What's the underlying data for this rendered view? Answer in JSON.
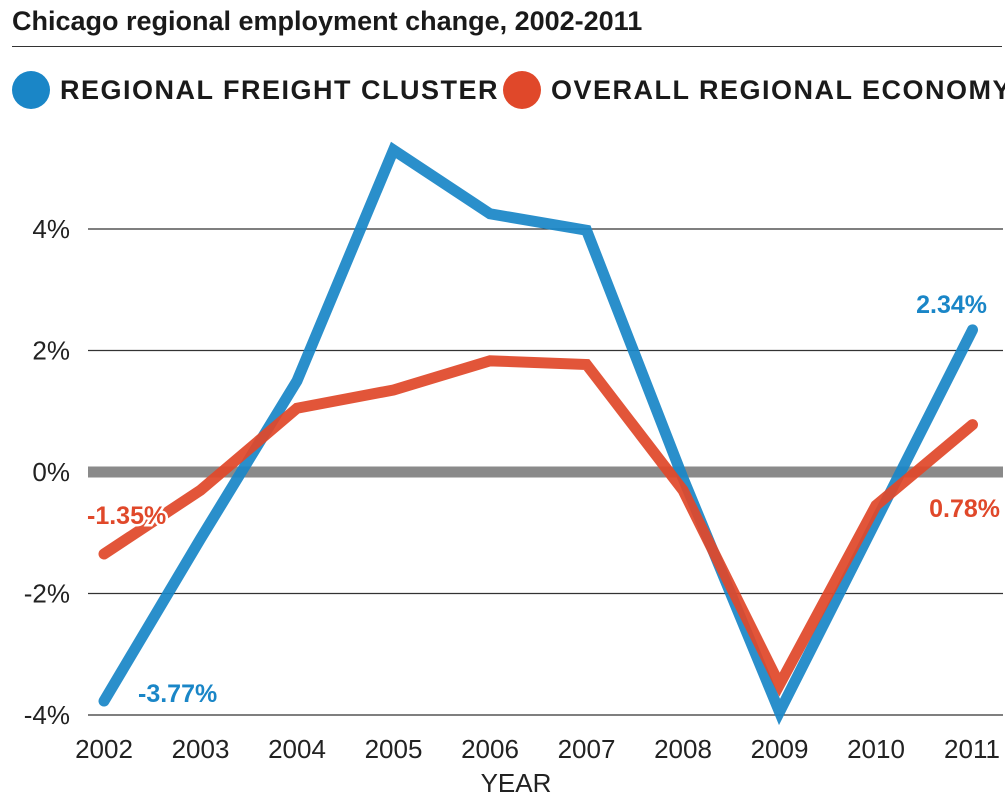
{
  "chart_data": {
    "type": "line",
    "title": "Chicago regional employment change, 2002-2011",
    "xlabel": "YEAR",
    "ylabel": "",
    "categories": [
      "2002",
      "2003",
      "2004",
      "2005",
      "2006",
      "2007",
      "2008",
      "2009",
      "2010",
      "2011"
    ],
    "series": [
      {
        "name": "REGIONAL FREIGHT CLUSTER",
        "color": "#1a86c7",
        "values": [
          -3.77,
          -1.1,
          1.5,
          5.3,
          4.25,
          3.98,
          -0.1,
          -3.95,
          -0.8,
          2.34
        ],
        "start_label": "-3.77%",
        "end_label": "2.34%"
      },
      {
        "name": "OVERALL REGIONAL ECONOMY",
        "color": "#e0482a",
        "values": [
          -1.35,
          -0.3,
          1.05,
          1.35,
          1.83,
          1.77,
          -0.3,
          -3.5,
          -0.55,
          0.78
        ],
        "start_label": "-1.35%",
        "end_label": "0.78%"
      }
    ],
    "y_ticks": [
      {
        "value": 4,
        "label": "4%"
      },
      {
        "value": 2,
        "label": "2%"
      },
      {
        "value": 0,
        "label": "0%"
      },
      {
        "value": -2,
        "label": "-2%"
      },
      {
        "value": -4,
        "label": "-4%"
      }
    ],
    "ylim": [
      -4,
      5.5
    ],
    "grid": true,
    "zero_line_color": "#8a8a8a",
    "legend_placement": "top-left"
  }
}
